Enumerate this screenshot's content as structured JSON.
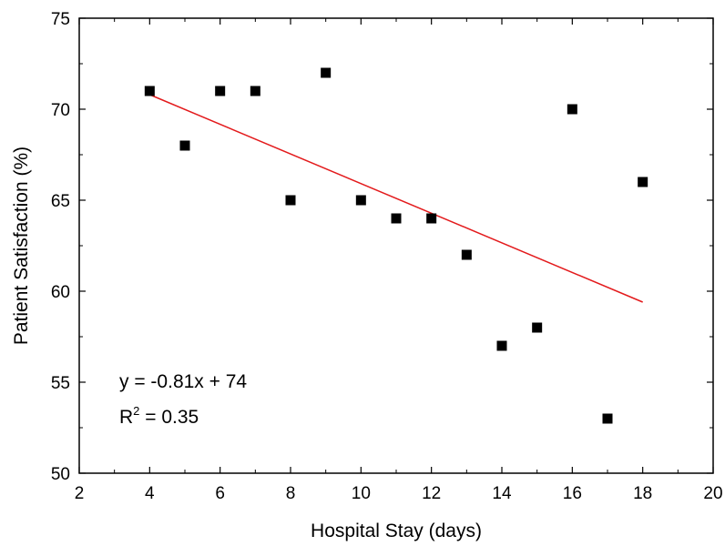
{
  "chart_data": {
    "type": "scatter",
    "title": "",
    "xlabel": "Hospital Stay (days)",
    "ylabel": "Patient Satisfaction (%)",
    "xlim": [
      2,
      20
    ],
    "ylim": [
      50,
      75
    ],
    "xticks": [
      2,
      4,
      6,
      8,
      10,
      12,
      14,
      16,
      18,
      20
    ],
    "yticks": [
      50,
      55,
      60,
      65,
      70,
      75
    ],
    "grid": false,
    "series": [
      {
        "marker": "square",
        "color": "#000000",
        "points": [
          {
            "x": 4,
            "y": 71
          },
          {
            "x": 5,
            "y": 68
          },
          {
            "x": 6,
            "y": 71
          },
          {
            "x": 7,
            "y": 71
          },
          {
            "x": 8,
            "y": 65
          },
          {
            "x": 9,
            "y": 72
          },
          {
            "x": 10,
            "y": 65
          },
          {
            "x": 11,
            "y": 64
          },
          {
            "x": 12,
            "y": 64
          },
          {
            "x": 13,
            "y": 62
          },
          {
            "x": 14,
            "y": 57
          },
          {
            "x": 15,
            "y": 58
          },
          {
            "x": 16,
            "y": 70
          },
          {
            "x": 17,
            "y": 53
          },
          {
            "x": 18,
            "y": 66
          }
        ]
      }
    ],
    "trendline": {
      "color": "#e31a1c",
      "slope": -0.81,
      "intercept": 74,
      "x_start": 4,
      "x_end": 18,
      "y_start": 70.8,
      "y_end": 59.4
    },
    "annotation": {
      "equation": "y = -0.81x + 74",
      "r2_prefix": "R",
      "r2_superscript": "2",
      "r2_value": " = 0.35"
    }
  }
}
